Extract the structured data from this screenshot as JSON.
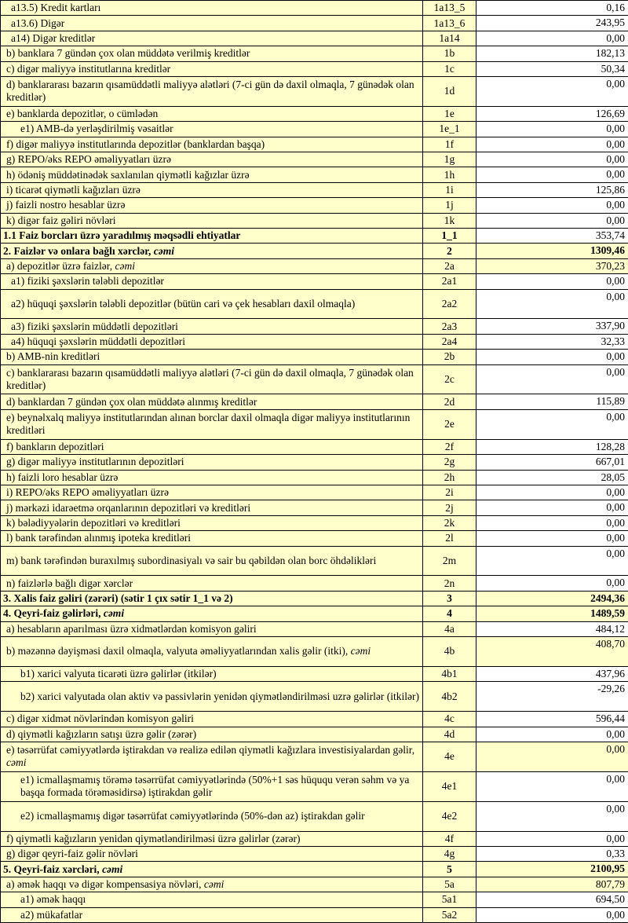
{
  "colors": {
    "row_fill_yellow": "#FFFFCC",
    "row_fill_white": "#FFFFFF",
    "border": "#000000"
  },
  "table": {
    "rows": [
      {
        "label": "a13.5) Kredit kartları",
        "em": "",
        "code": "1a13_5",
        "value": "0,16",
        "indent": 2,
        "bold": false,
        "tall": false,
        "value_yellow": false,
        "value_bold": false
      },
      {
        "label": "a13.6) Digər",
        "em": "",
        "code": "1a13_6",
        "value": "243,95",
        "indent": 2,
        "bold": false,
        "tall": false,
        "value_yellow": false,
        "value_bold": false
      },
      {
        "label": "a14) Digər kreditlər",
        "em": "",
        "code": "1a14",
        "value": "0,00",
        "indent": 2,
        "bold": false,
        "tall": false,
        "value_yellow": false,
        "value_bold": false
      },
      {
        "label": "b) banklara 7 gündən çox olan müddətə verilmiş kreditlər",
        "em": "",
        "code": "1b",
        "value": "182,13",
        "indent": 1,
        "bold": false,
        "tall": false,
        "value_yellow": false,
        "value_bold": false
      },
      {
        "label": "c) digər maliyyə institutlarına kreditlər",
        "em": "",
        "code": "1c",
        "value": "50,34",
        "indent": 1,
        "bold": false,
        "tall": false,
        "value_yellow": false,
        "value_bold": false
      },
      {
        "label": "d) banklararası bazarın qısamüddətli maliyyə alətləri (7-ci gün də daxil olmaqla, 7 günədək olan kreditlər)",
        "em": "",
        "code": "1d",
        "value": "0,00",
        "indent": 1,
        "bold": false,
        "tall": true,
        "value_yellow": false,
        "value_bold": false
      },
      {
        "label": "e) banklarda depozitlər, o cümlədən",
        "em": "",
        "code": "1e",
        "value": "126,69",
        "indent": 1,
        "bold": false,
        "tall": false,
        "value_yellow": false,
        "value_bold": false
      },
      {
        "label": "e1) AMB-də yerləşdirilmiş vəsaitlər",
        "em": "",
        "code": "1e_1",
        "value": "0,00",
        "indent": 3,
        "bold": false,
        "tall": false,
        "value_yellow": false,
        "value_bold": false
      },
      {
        "label": "f) digər maliyyə institutlarında depozitlər (banklardan başqa)",
        "em": "",
        "code": "1f",
        "value": "0,00",
        "indent": 1,
        "bold": false,
        "tall": false,
        "value_yellow": false,
        "value_bold": false
      },
      {
        "label": "g) REPO/əks REPO əməliyyatları üzrə",
        "em": "",
        "code": "1g",
        "value": "0,00",
        "indent": 1,
        "bold": false,
        "tall": false,
        "value_yellow": false,
        "value_bold": false
      },
      {
        "label": "h) ödəniş müddətinədək saxlanılan qiymətli kağızlar üzrə",
        "em": "",
        "code": "1h",
        "value": "0,00",
        "indent": 1,
        "bold": false,
        "tall": false,
        "value_yellow": false,
        "value_bold": false
      },
      {
        "label": "i) ticarət qiymətli kağızları üzrə",
        "em": "",
        "code": "1i",
        "value": "125,86",
        "indent": 1,
        "bold": false,
        "tall": false,
        "value_yellow": false,
        "value_bold": false
      },
      {
        "label": "j) faizli nostro hesablar üzrə",
        "em": "",
        "code": "1j",
        "value": "0,00",
        "indent": 1,
        "bold": false,
        "tall": false,
        "value_yellow": false,
        "value_bold": false
      },
      {
        "label": "k) digər faiz gəliri növləri",
        "em": "",
        "code": "1k",
        "value": "0,00",
        "indent": 1,
        "bold": false,
        "tall": false,
        "value_yellow": false,
        "value_bold": false
      },
      {
        "label": "1.1 Faiz borcları üzrə yaradılmış məqsədli ehtiyatlar",
        "em": "",
        "code": "1_1",
        "value": "353,74",
        "indent": 0,
        "bold": true,
        "tall": false,
        "value_yellow": false,
        "value_bold": false
      },
      {
        "label": "2. Faizlər və onlara bağlı xərclər, ",
        "em": "cəmi",
        "code": "2",
        "value": "1309,46",
        "indent": 0,
        "bold": true,
        "tall": false,
        "value_yellow": true,
        "value_bold": true
      },
      {
        "label": "a) depozitlər üzrə faizlər, ",
        "em": "cəmi",
        "code": "2a",
        "value": "370,23",
        "indent": 1,
        "bold": false,
        "tall": false,
        "value_yellow": true,
        "value_bold": false
      },
      {
        "label": "a1) fiziki şəxslərin tələbli depozitlər",
        "em": "",
        "code": "2a1",
        "value": "0,00",
        "indent": 2,
        "bold": false,
        "tall": false,
        "value_yellow": false,
        "value_bold": false
      },
      {
        "label": "a2) hüquqi şəxslərin tələbli depozitlər (bütün cari və çek hesabları daxil olmaqla)",
        "em": "",
        "code": "2a2",
        "value": "0,00",
        "indent": 2,
        "bold": false,
        "tall": true,
        "value_yellow": false,
        "value_bold": false
      },
      {
        "label": "a3) fiziki şəxslərin müddətli depozitləri",
        "em": "",
        "code": "2a3",
        "value": "337,90",
        "indent": 2,
        "bold": false,
        "tall": false,
        "value_yellow": false,
        "value_bold": false
      },
      {
        "label": "a4) hüquqi şəxslərin müddətli depozitləri",
        "em": "",
        "code": "2a4",
        "value": "32,33",
        "indent": 2,
        "bold": false,
        "tall": false,
        "value_yellow": false,
        "value_bold": false
      },
      {
        "label": "b) AMB-nin kreditləri",
        "em": "",
        "code": "2b",
        "value": "0,00",
        "indent": 1,
        "bold": false,
        "tall": false,
        "value_yellow": false,
        "value_bold": false
      },
      {
        "label": "c) banklararası bazarın qısamüddətli maliyyə alətləri (7-ci gün də daxil olmaqla, 7 günədək olan kreditlər)",
        "em": "",
        "code": "2c",
        "value": "0,00",
        "indent": 1,
        "bold": false,
        "tall": true,
        "value_yellow": false,
        "value_bold": false
      },
      {
        "label": "d) banklardan 7 gündən çox olan müddətə alınmış kreditlər",
        "em": "",
        "code": "2d",
        "value": "115,89",
        "indent": 1,
        "bold": false,
        "tall": false,
        "value_yellow": false,
        "value_bold": false
      },
      {
        "label": "e) beynəlxalq maliyyə institutlarından alınan borclar daxil olmaqla digər maliyyə institutlarının kreditləri",
        "em": "",
        "code": "2e",
        "value": "0,00",
        "indent": 1,
        "bold": false,
        "tall": true,
        "value_yellow": false,
        "value_bold": false
      },
      {
        "label": "f) bankların depozitləri",
        "em": "",
        "code": "2f",
        "value": "128,28",
        "indent": 1,
        "bold": false,
        "tall": false,
        "value_yellow": false,
        "value_bold": false
      },
      {
        "label": "g) digər maliyyə institutlarının depozitləri",
        "em": "",
        "code": "2g",
        "value": "667,01",
        "indent": 1,
        "bold": false,
        "tall": false,
        "value_yellow": false,
        "value_bold": false
      },
      {
        "label": "h) faizli loro hesablar üzrə",
        "em": "",
        "code": "2h",
        "value": "28,05",
        "indent": 1,
        "bold": false,
        "tall": false,
        "value_yellow": false,
        "value_bold": false
      },
      {
        "label": "i) REPO/əks REPO əməliyyatları üzrə",
        "em": "",
        "code": "2i",
        "value": "0,00",
        "indent": 1,
        "bold": false,
        "tall": false,
        "value_yellow": false,
        "value_bold": false
      },
      {
        "label": "j) mərkəzi idarəetmə orqanlarının depozitləri və kreditləri",
        "em": "",
        "code": "2j",
        "value": "0,00",
        "indent": 1,
        "bold": false,
        "tall": false,
        "value_yellow": false,
        "value_bold": false
      },
      {
        "label": "k) bələdiyyələrin depozitləri və kreditləri",
        "em": "",
        "code": "2k",
        "value": "0,00",
        "indent": 1,
        "bold": false,
        "tall": false,
        "value_yellow": false,
        "value_bold": false
      },
      {
        "label": "l) bank tərəfindən alınmış ipoteka kreditləri",
        "em": "",
        "code": "2l",
        "value": "0,00",
        "indent": 1,
        "bold": false,
        "tall": false,
        "value_yellow": false,
        "value_bold": false
      },
      {
        "label": "m) bank tərəfindən buraxılmış subordinasiyalı və sair bu qəbildən olan borc öhdəlikləri",
        "em": "",
        "code": "2m",
        "value": "0,00",
        "indent": 1,
        "bold": false,
        "tall": true,
        "value_yellow": false,
        "value_bold": false
      },
      {
        "label": "n) faizlərlə bağlı digər xərclər",
        "em": "",
        "code": "2n",
        "value": "0,00",
        "indent": 1,
        "bold": false,
        "tall": false,
        "value_yellow": false,
        "value_bold": false
      },
      {
        "label": "3. Xalis faiz gəliri (zərəri) (sətir 1 çıx sətir 1_1 və 2)",
        "em": "",
        "code": "3",
        "value": "2494,36",
        "indent": 0,
        "bold": true,
        "tall": false,
        "value_yellow": true,
        "value_bold": true
      },
      {
        "label": "4. Qeyri-faiz gəlirləri, ",
        "em": "cəmi",
        "code": "4",
        "value": "1489,59",
        "indent": 0,
        "bold": true,
        "tall": false,
        "value_yellow": true,
        "value_bold": true
      },
      {
        "label": "a) hesabların aparılması üzrə xidmətlərdən komisyon gəliri",
        "em": "",
        "code": "4a",
        "value": "484,12",
        "indent": 1,
        "bold": false,
        "tall": false,
        "value_yellow": false,
        "value_bold": false
      },
      {
        "label": "b) məzənnə dəyişməsi daxil olmaqla, valyuta əməliyyatlarından xalis gəlir (itki), ",
        "em": "cəmi",
        "code": "4b",
        "value": "408,70",
        "indent": 1,
        "bold": false,
        "tall": true,
        "value_yellow": true,
        "value_bold": false
      },
      {
        "label": "b1) xarici valyuta ticarəti üzrə gəlirlər (itkilər)",
        "em": "",
        "code": "4b1",
        "value": "437,96",
        "indent": 3,
        "bold": false,
        "tall": false,
        "value_yellow": false,
        "value_bold": false
      },
      {
        "label": "b2) xarici valyutada olan aktiv və passivlərin yenidən qiymətləndirilməsi uzrə gəlirlər (itkilər)",
        "em": "",
        "code": "4b2",
        "value": "-29,26",
        "indent": 3,
        "bold": false,
        "tall": true,
        "value_yellow": false,
        "value_bold": false
      },
      {
        "label": "c) digər xidmət növlərindən komisyon gəliri",
        "em": "",
        "code": "4c",
        "value": "596,44",
        "indent": 1,
        "bold": false,
        "tall": false,
        "value_yellow": false,
        "value_bold": false
      },
      {
        "label": "d) qiymətli kağızların satışı üzrə gəlir (zərər)",
        "em": "",
        "code": "4d",
        "value": "0,00",
        "indent": 1,
        "bold": false,
        "tall": false,
        "value_yellow": false,
        "value_bold": false
      },
      {
        "label": "e) təsərrüfat cəmiyyətlərdə iştirakdan və realizə edilən qiymətli kağızlara investisiyalardan gəlir, ",
        "em": "cəmi",
        "code": "4e",
        "value": "0,00",
        "indent": 1,
        "bold": false,
        "tall": true,
        "value_yellow": true,
        "value_bold": false
      },
      {
        "label": "e1) icmallaşmamış törəmə təsərrüfat cəmiyyətlərində (50%+1 səs hüququ verən səhm və ya başqa formada törəməsidirsə) iştirakdan gəlir",
        "em": "",
        "code": "4e1",
        "value": "0,00",
        "indent": 3,
        "bold": false,
        "tall": true,
        "value_yellow": false,
        "value_bold": false
      },
      {
        "label": "e2) icmallaşmamış digər təsərrüfat cəmiyyətlərində (50%-dən az) iştirakdan gəlir",
        "em": "",
        "code": "4e2",
        "value": "0,00",
        "indent": 3,
        "bold": false,
        "tall": true,
        "value_yellow": false,
        "value_bold": false
      },
      {
        "label": "f) qiymətli kağızların yenidən qiymətləndirilməsi üzrə gəlirlər (zərər)",
        "em": "",
        "code": "4f",
        "value": "0,00",
        "indent": 1,
        "bold": false,
        "tall": false,
        "value_yellow": false,
        "value_bold": false
      },
      {
        "label": "g) digər qeyri-faiz gəlir növləri",
        "em": "",
        "code": "4g",
        "value": "0,33",
        "indent": 1,
        "bold": false,
        "tall": false,
        "value_yellow": false,
        "value_bold": false
      },
      {
        "label": "5. Qeyri-faiz xərcləri, ",
        "em": "cəmi",
        "code": "5",
        "value": "2100,95",
        "indent": 0,
        "bold": true,
        "tall": false,
        "value_yellow": true,
        "value_bold": true
      },
      {
        "label": "a) əmək haqqı və digər kompensasiya növləri, ",
        "em": "cəmi",
        "code": "5a",
        "value": "807,79",
        "indent": 1,
        "bold": false,
        "tall": false,
        "value_yellow": true,
        "value_bold": false
      },
      {
        "label": "a1) əmək haqqı",
        "em": "",
        "code": "5a1",
        "value": "694,50",
        "indent": 3,
        "bold": false,
        "tall": false,
        "value_yellow": false,
        "value_bold": false
      },
      {
        "label": "a2) mükafatlar",
        "em": "",
        "code": "5a2",
        "value": "0,00",
        "indent": 3,
        "bold": false,
        "tall": false,
        "value_yellow": false,
        "value_bold": false
      }
    ]
  }
}
